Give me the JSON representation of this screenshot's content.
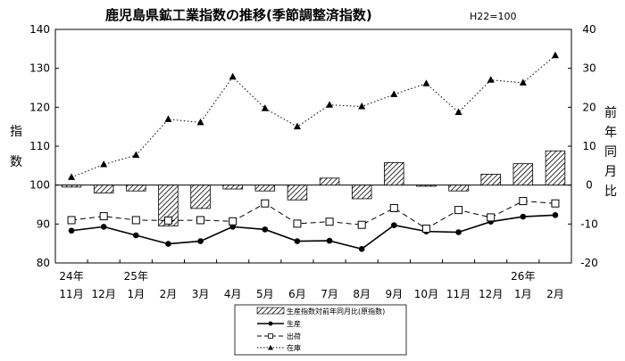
{
  "chart_data": {
    "type": "bar",
    "title": "鹿児島県鉱工業指数の推移(季節調整済指数)",
    "base_note": "H22=100",
    "ylabel_left": [
      "指",
      "数"
    ],
    "ylabel_right": [
      "前",
      "年",
      "同",
      "月",
      "比"
    ],
    "ylim_left": [
      80,
      140
    ],
    "yticks_left": [
      80,
      90,
      100,
      110,
      120,
      130,
      140
    ],
    "ylim_right": [
      -20,
      40
    ],
    "yticks_right": [
      -20,
      -10,
      0,
      10,
      20,
      30,
      40
    ],
    "categories": [
      "11月",
      "12月",
      "1月",
      "2月",
      "3月",
      "4月",
      "5月",
      "6月",
      "7月",
      "8月",
      "9月",
      "10月",
      "11月",
      "12月",
      "1月",
      "2月"
    ],
    "year_labels": [
      {
        "index": 0,
        "label": "24年"
      },
      {
        "index": 2,
        "label": "25年"
      },
      {
        "index": 14,
        "label": "26年"
      }
    ],
    "bars": {
      "name": "生産指数対前年同月比(原指数)",
      "axis": "right",
      "values": [
        -0.5,
        -2,
        -1.5,
        -10.5,
        -6,
        -1,
        -1.5,
        -3.8,
        1.8,
        -3.5,
        5.8,
        -0.3,
        -1.5,
        2.8,
        5.5,
        8.8
      ]
    },
    "series": [
      {
        "name": "生産",
        "axis": "left",
        "values": [
          88.3,
          89.3,
          87.1,
          84.9,
          85.6,
          89.3,
          88.6,
          85.6,
          85.7,
          83.6,
          89.7,
          88.1,
          87.9,
          90.6,
          91.9,
          92.3
        ]
      },
      {
        "name": "出荷",
        "axis": "left",
        "values": [
          91,
          92,
          91,
          90.9,
          91,
          90.7,
          95.3,
          90.1,
          90.6,
          89.8,
          94.1,
          88.8,
          93.6,
          91.7,
          95.9,
          95.3
        ]
      },
      {
        "name": "在庫",
        "axis": "left",
        "values": [
          102,
          105.3,
          107.7,
          116.9,
          116.1,
          127.8,
          119.7,
          115,
          120.6,
          120.2,
          123.3,
          126.1,
          118.7,
          127,
          126.3,
          133.3
        ]
      }
    ],
    "grid": false,
    "legend_position": "bottom-center"
  },
  "colors": {
    "axis": "#000000",
    "bar_hatch": "#000000",
    "series_line": "#000000"
  }
}
